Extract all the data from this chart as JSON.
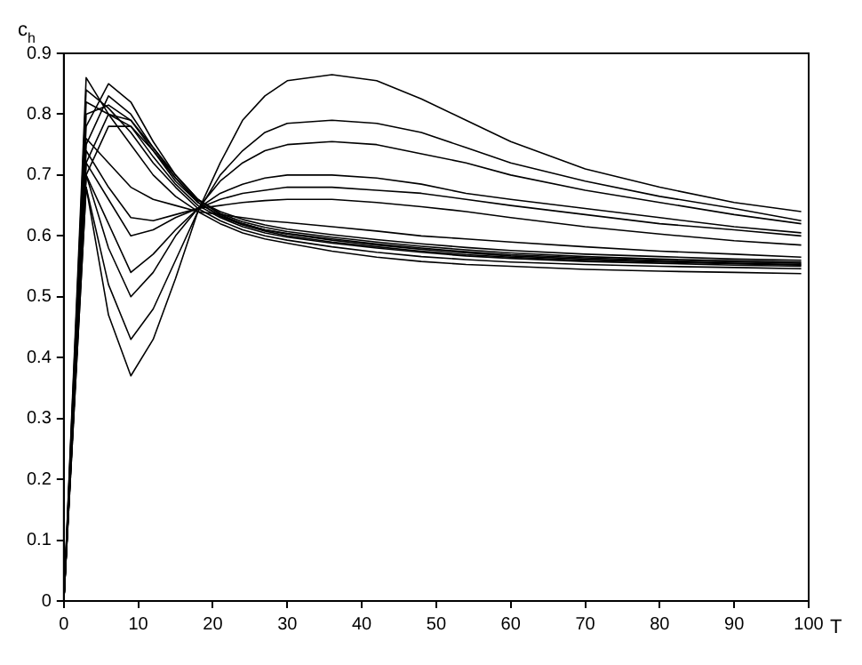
{
  "chart_data": {
    "type": "line",
    "xlabel": "T",
    "ylabel": "c$_{h}$",
    "x": [
      0,
      3,
      6,
      9,
      12,
      15,
      18,
      21,
      24,
      27,
      30,
      36,
      42,
      48,
      54,
      60,
      70,
      80,
      90,
      99
    ],
    "xlim": [
      0,
      100
    ],
    "xticks": [
      0,
      10,
      20,
      30,
      40,
      50,
      60,
      70,
      80,
      90,
      100
    ],
    "ylim": [
      0,
      0.9
    ],
    "yticks": [
      0,
      0.1,
      0.2,
      0.3,
      0.4,
      0.5,
      0.6,
      0.7,
      0.8,
      0.9
    ],
    "grid": false,
    "legend": false,
    "marker": "none",
    "line_style": "solid",
    "series": [
      {
        "color": "#000000",
        "values": [
          0,
          0.68,
          0.47,
          0.37,
          0.43,
          0.53,
          0.64,
          0.72,
          0.79,
          0.83,
          0.855,
          0.865,
          0.855,
          0.825,
          0.79,
          0.755,
          0.71,
          0.68,
          0.655,
          0.64
        ]
      },
      {
        "color": "#000000",
        "values": [
          0,
          0.68,
          0.52,
          0.43,
          0.48,
          0.56,
          0.64,
          0.7,
          0.74,
          0.77,
          0.785,
          0.79,
          0.785,
          0.77,
          0.745,
          0.72,
          0.69,
          0.665,
          0.645,
          0.625
        ]
      },
      {
        "color": "#000000",
        "values": [
          0,
          0.7,
          0.58,
          0.5,
          0.54,
          0.6,
          0.645,
          0.69,
          0.72,
          0.74,
          0.75,
          0.755,
          0.75,
          0.735,
          0.72,
          0.7,
          0.675,
          0.655,
          0.635,
          0.62
        ]
      },
      {
        "color": "#000000",
        "values": [
          0,
          0.7,
          0.62,
          0.54,
          0.57,
          0.61,
          0.645,
          0.67,
          0.685,
          0.695,
          0.7,
          0.7,
          0.695,
          0.685,
          0.67,
          0.66,
          0.645,
          0.63,
          0.615,
          0.605
        ]
      },
      {
        "color": "#000000",
        "values": [
          0,
          0.72,
          0.66,
          0.6,
          0.61,
          0.63,
          0.645,
          0.66,
          0.67,
          0.675,
          0.68,
          0.68,
          0.675,
          0.67,
          0.66,
          0.65,
          0.635,
          0.62,
          0.61,
          0.6
        ]
      },
      {
        "color": "#000000",
        "values": [
          0,
          0.74,
          0.68,
          0.63,
          0.625,
          0.635,
          0.645,
          0.65,
          0.655,
          0.658,
          0.66,
          0.66,
          0.655,
          0.648,
          0.64,
          0.63,
          0.615,
          0.603,
          0.592,
          0.585
        ]
      },
      {
        "color": "#000000",
        "values": [
          0,
          0.76,
          0.72,
          0.68,
          0.66,
          0.65,
          0.64,
          0.635,
          0.63,
          0.625,
          0.622,
          0.615,
          0.608,
          0.6,
          0.595,
          0.59,
          0.582,
          0.575,
          0.57,
          0.565
        ]
      },
      {
        "color": "#000000",
        "values": [
          0,
          0.86,
          0.8,
          0.75,
          0.7,
          0.665,
          0.64,
          0.62,
          0.605,
          0.595,
          0.588,
          0.575,
          0.565,
          0.558,
          0.553,
          0.55,
          0.545,
          0.542,
          0.54,
          0.538
        ]
      },
      {
        "color": "#000000",
        "values": [
          0,
          0.84,
          0.81,
          0.77,
          0.72,
          0.68,
          0.645,
          0.625,
          0.61,
          0.6,
          0.593,
          0.582,
          0.573,
          0.566,
          0.561,
          0.557,
          0.553,
          0.55,
          0.548,
          0.546
        ]
      },
      {
        "color": "#000000",
        "values": [
          0,
          0.82,
          0.8,
          0.78,
          0.73,
          0.685,
          0.65,
          0.63,
          0.615,
          0.605,
          0.598,
          0.588,
          0.58,
          0.573,
          0.567,
          0.563,
          0.558,
          0.555,
          0.552,
          0.55
        ]
      },
      {
        "color": "#000000",
        "values": [
          0,
          0.8,
          0.815,
          0.79,
          0.74,
          0.69,
          0.655,
          0.632,
          0.618,
          0.608,
          0.6,
          0.59,
          0.582,
          0.575,
          0.569,
          0.565,
          0.56,
          0.557,
          0.554,
          0.552
        ]
      },
      {
        "color": "#000000",
        "values": [
          0,
          0.78,
          0.85,
          0.82,
          0.755,
          0.7,
          0.66,
          0.635,
          0.62,
          0.61,
          0.603,
          0.593,
          0.585,
          0.578,
          0.572,
          0.567,
          0.562,
          0.558,
          0.555,
          0.553
        ]
      },
      {
        "color": "#000000",
        "values": [
          0,
          0.75,
          0.83,
          0.8,
          0.745,
          0.695,
          0.655,
          0.633,
          0.62,
          0.61,
          0.604,
          0.595,
          0.587,
          0.58,
          0.574,
          0.569,
          0.564,
          0.56,
          0.557,
          0.555
        ]
      },
      {
        "color": "#000000",
        "values": [
          0,
          0.72,
          0.8,
          0.79,
          0.745,
          0.7,
          0.66,
          0.637,
          0.623,
          0.614,
          0.607,
          0.598,
          0.59,
          0.583,
          0.577,
          0.572,
          0.566,
          0.562,
          0.559,
          0.557
        ]
      },
      {
        "color": "#000000",
        "values": [
          0,
          0.7,
          0.78,
          0.78,
          0.74,
          0.695,
          0.658,
          0.64,
          0.627,
          0.618,
          0.611,
          0.602,
          0.594,
          0.587,
          0.581,
          0.576,
          0.57,
          0.566,
          0.562,
          0.56
        ]
      }
    ]
  }
}
